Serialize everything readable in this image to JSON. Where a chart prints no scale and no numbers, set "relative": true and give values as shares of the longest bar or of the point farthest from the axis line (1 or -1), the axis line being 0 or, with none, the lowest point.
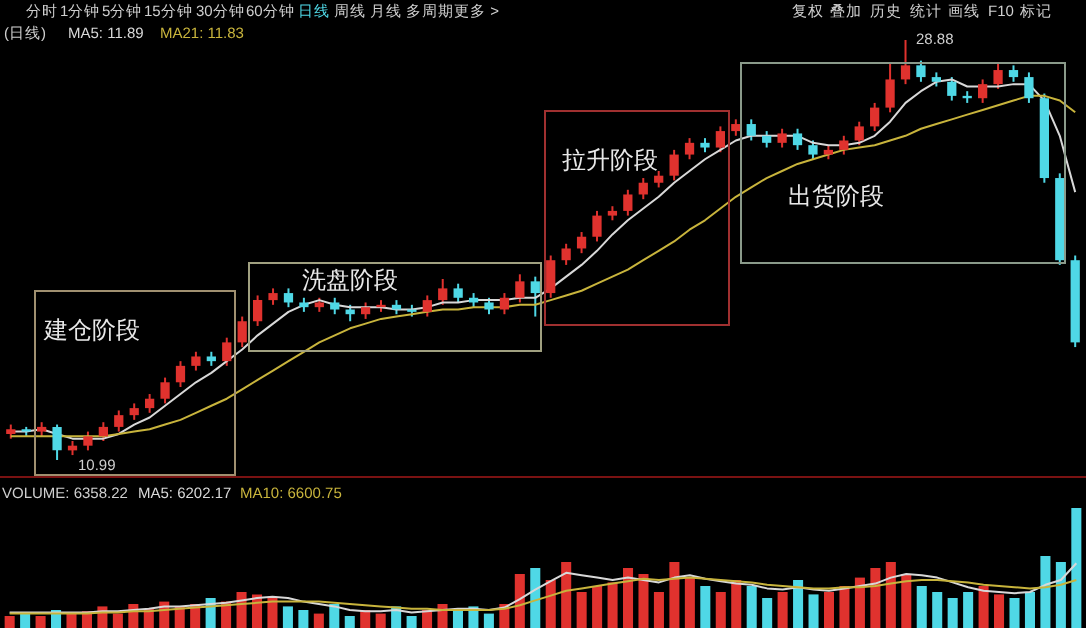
{
  "chart_data": [
    {
      "type": "candlestick",
      "categories": [
        null,
        null,
        null,
        null,
        null,
        null,
        null,
        null,
        null,
        null,
        null,
        null,
        null,
        null,
        null,
        null,
        null,
        null,
        null,
        null,
        null,
        null,
        null,
        null,
        null,
        null,
        null,
        null,
        null,
        null,
        null,
        null,
        null,
        null,
        null,
        null,
        null,
        null,
        null,
        null,
        null,
        null,
        null,
        null,
        null,
        null,
        null,
        null,
        null,
        null,
        null,
        null,
        null,
        null,
        null,
        null,
        null,
        null,
        null,
        null,
        null,
        null,
        null,
        null,
        null,
        null,
        null,
        null,
        null,
        null
      ],
      "ohlc": [
        [
          12.1,
          12.5,
          11.9,
          12.3
        ],
        [
          12.3,
          12.4,
          12.0,
          12.2
        ],
        [
          12.2,
          12.6,
          12.0,
          12.4
        ],
        [
          12.4,
          12.5,
          10.99,
          11.4
        ],
        [
          11.4,
          11.8,
          11.2,
          11.6
        ],
        [
          11.6,
          12.2,
          11.4,
          12.0
        ],
        [
          12.0,
          12.6,
          11.8,
          12.4
        ],
        [
          12.4,
          13.1,
          12.2,
          12.9
        ],
        [
          12.9,
          13.4,
          12.7,
          13.2
        ],
        [
          13.2,
          13.8,
          13.0,
          13.6
        ],
        [
          13.6,
          14.5,
          13.4,
          14.3
        ],
        [
          14.3,
          15.2,
          14.1,
          15.0
        ],
        [
          15.0,
          15.6,
          14.8,
          15.4
        ],
        [
          15.4,
          15.6,
          15.0,
          15.2
        ],
        [
          15.2,
          16.2,
          15.0,
          16.0
        ],
        [
          16.0,
          17.1,
          15.8,
          16.9
        ],
        [
          16.9,
          18.0,
          16.7,
          17.8
        ],
        [
          17.8,
          18.3,
          17.6,
          18.1
        ],
        [
          18.1,
          18.3,
          17.5,
          17.7
        ],
        [
          17.7,
          17.9,
          17.3,
          17.5
        ],
        [
          17.5,
          17.9,
          17.3,
          17.7
        ],
        [
          17.7,
          17.9,
          17.2,
          17.4
        ],
        [
          17.4,
          17.6,
          16.9,
          17.2
        ],
        [
          17.2,
          17.7,
          17.0,
          17.5
        ],
        [
          17.5,
          17.8,
          17.3,
          17.6
        ],
        [
          17.6,
          17.8,
          17.2,
          17.4
        ],
        [
          17.4,
          17.6,
          17.1,
          17.3
        ],
        [
          17.3,
          18.0,
          17.1,
          17.8
        ],
        [
          17.8,
          18.7,
          17.6,
          18.3
        ],
        [
          18.3,
          18.5,
          17.7,
          17.9
        ],
        [
          17.9,
          18.1,
          17.5,
          17.7
        ],
        [
          17.7,
          17.9,
          17.2,
          17.4
        ],
        [
          17.4,
          18.1,
          17.2,
          17.9
        ],
        [
          17.9,
          18.9,
          17.7,
          18.6
        ],
        [
          18.6,
          18.8,
          17.1,
          18.1
        ],
        [
          18.1,
          19.7,
          17.9,
          19.5
        ],
        [
          19.5,
          20.2,
          19.3,
          20.0
        ],
        [
          20.0,
          20.7,
          19.8,
          20.5
        ],
        [
          20.5,
          21.6,
          20.3,
          21.4
        ],
        [
          21.4,
          21.8,
          21.2,
          21.6
        ],
        [
          21.6,
          22.5,
          21.4,
          22.3
        ],
        [
          22.3,
          23.0,
          22.1,
          22.8
        ],
        [
          22.8,
          23.3,
          22.6,
          23.1
        ],
        [
          23.1,
          24.2,
          22.9,
          24.0
        ],
        [
          24.0,
          24.7,
          23.8,
          24.5
        ],
        [
          24.5,
          24.7,
          24.1,
          24.3
        ],
        [
          24.3,
          25.2,
          24.1,
          25.0
        ],
        [
          25.0,
          25.5,
          24.8,
          25.3
        ],
        [
          25.3,
          25.5,
          24.6,
          24.8
        ],
        [
          24.8,
          25.0,
          24.3,
          24.5
        ],
        [
          24.5,
          25.1,
          24.3,
          24.9
        ],
        [
          24.9,
          25.1,
          24.2,
          24.4
        ],
        [
          24.4,
          24.6,
          23.8,
          24.0
        ],
        [
          24.0,
          24.4,
          23.8,
          24.2
        ],
        [
          24.2,
          24.8,
          24.0,
          24.6
        ],
        [
          24.6,
          25.4,
          24.4,
          25.2
        ],
        [
          25.2,
          26.2,
          25.0,
          26.0
        ],
        [
          26.0,
          27.9,
          25.8,
          27.2
        ],
        [
          27.2,
          28.88,
          27.0,
          27.8
        ],
        [
          27.8,
          28.0,
          27.1,
          27.3
        ],
        [
          27.3,
          27.5,
          26.9,
          27.1
        ],
        [
          27.1,
          27.3,
          26.3,
          26.5
        ],
        [
          26.5,
          26.7,
          26.2,
          26.4
        ],
        [
          26.4,
          27.2,
          26.2,
          27.0
        ],
        [
          27.0,
          27.9,
          26.8,
          27.6
        ],
        [
          27.6,
          27.8,
          27.1,
          27.3
        ],
        [
          27.3,
          27.5,
          26.2,
          26.4
        ],
        [
          26.4,
          26.6,
          22.8,
          23.0
        ],
        [
          23.0,
          23.2,
          19.3,
          19.5
        ],
        [
          19.5,
          19.7,
          15.8,
          16.0
        ]
      ],
      "colors": [
        "#e0322e",
        "#4fd8e6",
        "#e0322e",
        "#4fd8e6",
        "#e0322e",
        "#e0322e",
        "#e0322e",
        "#e0322e",
        "#e0322e",
        "#e0322e",
        "#e0322e",
        "#e0322e",
        "#e0322e",
        "#4fd8e6",
        "#e0322e",
        "#e0322e",
        "#e0322e",
        "#e0322e",
        "#4fd8e6",
        "#4fd8e6",
        "#e0322e",
        "#4fd8e6",
        "#4fd8e6",
        "#e0322e",
        "#e0322e",
        "#4fd8e6",
        "#4fd8e6",
        "#e0322e",
        "#e0322e",
        "#4fd8e6",
        "#4fd8e6",
        "#4fd8e6",
        "#e0322e",
        "#e0322e",
        "#4fd8e6",
        "#e0322e",
        "#e0322e",
        "#e0322e",
        "#e0322e",
        "#e0322e",
        "#e0322e",
        "#e0322e",
        "#e0322e",
        "#e0322e",
        "#e0322e",
        "#4fd8e6",
        "#e0322e",
        "#e0322e",
        "#4fd8e6",
        "#4fd8e6",
        "#e0322e",
        "#4fd8e6",
        "#4fd8e6",
        "#e0322e",
        "#e0322e",
        "#e0322e",
        "#e0322e",
        "#e0322e",
        "#e0322e",
        "#4fd8e6",
        "#4fd8e6",
        "#4fd8e6",
        "#4fd8e6",
        "#e0322e",
        "#e0322e",
        "#4fd8e6",
        "#4fd8e6",
        "#4fd8e6",
        "#4fd8e6",
        "#4fd8e6"
      ],
      "series": [
        {
          "type": "line",
          "color": "#d8d8d8",
          "values": [
            12.2,
            12.2,
            12.3,
            12.1,
            11.9,
            11.9,
            11.9,
            12.1,
            12.5,
            12.8,
            13.3,
            13.8,
            14.3,
            14.7,
            15.2,
            15.7,
            16.3,
            16.8,
            17.3,
            17.6,
            17.8,
            17.6,
            17.5,
            17.5,
            17.5,
            17.4,
            17.4,
            17.5,
            17.7,
            17.7,
            17.8,
            17.8,
            17.8,
            17.9,
            17.9,
            18.3,
            18.8,
            19.3,
            19.9,
            20.6,
            21.2,
            21.7,
            22.2,
            22.8,
            23.3,
            23.8,
            24.2,
            24.6,
            24.8,
            24.8,
            24.8,
            24.8,
            24.5,
            24.4,
            24.4,
            24.5,
            24.8,
            25.4,
            26.2,
            26.7,
            27.1,
            27.2,
            26.9,
            26.9,
            26.9,
            27.0,
            27.0,
            26.3,
            24.8,
            22.4
          ]
        },
        {
          "type": "line",
          "color": "#c8b43c",
          "values": [
            12.0,
            12.0,
            12.0,
            12.0,
            12.0,
            12.0,
            12.0,
            12.1,
            12.2,
            12.3,
            12.5,
            12.7,
            13.0,
            13.3,
            13.6,
            14.0,
            14.4,
            14.8,
            15.2,
            15.6,
            16.0,
            16.3,
            16.6,
            16.8,
            17.0,
            17.1,
            17.2,
            17.3,
            17.4,
            17.4,
            17.5,
            17.5,
            17.5,
            17.6,
            17.6,
            17.8,
            18.0,
            18.2,
            18.5,
            18.8,
            19.1,
            19.5,
            19.9,
            20.3,
            20.8,
            21.2,
            21.7,
            22.2,
            22.6,
            23.0,
            23.3,
            23.6,
            23.8,
            24.0,
            24.2,
            24.3,
            24.4,
            24.6,
            24.8,
            25.1,
            25.3,
            25.5,
            25.7,
            25.9,
            26.1,
            26.3,
            26.5,
            26.5,
            26.3,
            25.8
          ]
        }
      ],
      "annotations": [
        "分时",
        "1分钟",
        "5分钟",
        "15分钟",
        "30分钟",
        "60分钟",
        "日线",
        "周线",
        "月线",
        "多周期",
        "更多 >",
        "复权",
        "叠加",
        "历史",
        "统计",
        "画线",
        "F10",
        "标记",
        "(日线)",
        "MA5: 11.89",
        "MA21: 11.83",
        "建仓阶段",
        "洗盘阶段",
        "拉升阶段",
        "出货阶段",
        "28.88",
        "10.99"
      ]
    },
    {
      "type": "bar",
      "relative": true,
      "categories": [
        null,
        null,
        null,
        null,
        null,
        null,
        null,
        null,
        null,
        null,
        null,
        null,
        null,
        null,
        null,
        null,
        null,
        null,
        null,
        null,
        null,
        null,
        null,
        null,
        null,
        null,
        null,
        null,
        null,
        null,
        null,
        null,
        null,
        null,
        null,
        null,
        null,
        null,
        null,
        null,
        null,
        null,
        null,
        null,
        null,
        null,
        null,
        null,
        null,
        null,
        null,
        null,
        null,
        null,
        null,
        null,
        null,
        null,
        null,
        null,
        null,
        null,
        null,
        null,
        null,
        null,
        null,
        null,
        null,
        null
      ],
      "values": [
        0.1,
        0.12,
        0.1,
        0.15,
        0.12,
        0.14,
        0.18,
        0.12,
        0.2,
        0.16,
        0.22,
        0.18,
        0.2,
        0.25,
        0.22,
        0.3,
        0.28,
        0.25,
        0.18,
        0.15,
        0.12,
        0.2,
        0.1,
        0.15,
        0.12,
        0.18,
        0.1,
        0.15,
        0.2,
        0.15,
        0.18,
        0.12,
        0.2,
        0.45,
        0.5,
        0.4,
        0.55,
        0.3,
        0.35,
        0.38,
        0.5,
        0.45,
        0.3,
        0.55,
        0.42,
        0.35,
        0.3,
        0.4,
        0.35,
        0.25,
        0.3,
        0.4,
        0.28,
        0.3,
        0.35,
        0.42,
        0.5,
        0.55,
        0.45,
        0.35,
        0.3,
        0.25,
        0.3,
        0.35,
        0.28,
        0.25,
        0.3,
        0.6,
        0.55,
        1
      ],
      "colors": [
        "#e0322e",
        "#4fd8e6",
        "#e0322e",
        "#4fd8e6",
        "#e0322e",
        "#e0322e",
        "#e0322e",
        "#e0322e",
        "#e0322e",
        "#e0322e",
        "#e0322e",
        "#e0322e",
        "#e0322e",
        "#4fd8e6",
        "#e0322e",
        "#e0322e",
        "#e0322e",
        "#e0322e",
        "#4fd8e6",
        "#4fd8e6",
        "#e0322e",
        "#4fd8e6",
        "#4fd8e6",
        "#e0322e",
        "#e0322e",
        "#4fd8e6",
        "#4fd8e6",
        "#e0322e",
        "#e0322e",
        "#4fd8e6",
        "#4fd8e6",
        "#4fd8e6",
        "#e0322e",
        "#e0322e",
        "#4fd8e6",
        "#e0322e",
        "#e0322e",
        "#e0322e",
        "#e0322e",
        "#e0322e",
        "#e0322e",
        "#e0322e",
        "#e0322e",
        "#e0322e",
        "#e0322e",
        "#4fd8e6",
        "#e0322e",
        "#e0322e",
        "#4fd8e6",
        "#4fd8e6",
        "#e0322e",
        "#4fd8e6",
        "#4fd8e6",
        "#e0322e",
        "#e0322e",
        "#e0322e",
        "#e0322e",
        "#e0322e",
        "#e0322e",
        "#4fd8e6",
        "#4fd8e6",
        "#4fd8e6",
        "#4fd8e6",
        "#e0322e",
        "#e0322e",
        "#4fd8e6",
        "#4fd8e6",
        "#4fd8e6",
        "#4fd8e6",
        "#4fd8e6"
      ],
      "series": [
        {
          "type": "line",
          "color": "#d8d8d8",
          "values": [
            0.13,
            0.13,
            0.13,
            0.13,
            0.13,
            0.13,
            0.14,
            0.14,
            0.15,
            0.16,
            0.18,
            0.18,
            0.19,
            0.2,
            0.21,
            0.23,
            0.25,
            0.26,
            0.25,
            0.22,
            0.2,
            0.18,
            0.15,
            0.14,
            0.14,
            0.15,
            0.13,
            0.14,
            0.15,
            0.16,
            0.16,
            0.15,
            0.17,
            0.24,
            0.32,
            0.39,
            0.46,
            0.44,
            0.42,
            0.4,
            0.42,
            0.4,
            0.38,
            0.42,
            0.44,
            0.41,
            0.39,
            0.37,
            0.36,
            0.33,
            0.32,
            0.34,
            0.32,
            0.31,
            0.33,
            0.35,
            0.37,
            0.42,
            0.45,
            0.44,
            0.42,
            0.38,
            0.34,
            0.31,
            0.3,
            0.29,
            0.3,
            0.36,
            0.4,
            0.54
          ]
        },
        {
          "type": "line",
          "color": "#c8b43c",
          "values": [
            0.12,
            0.12,
            0.12,
            0.12,
            0.12,
            0.12,
            0.13,
            0.13,
            0.14,
            0.14,
            0.15,
            0.16,
            0.17,
            0.18,
            0.19,
            0.2,
            0.21,
            0.22,
            0.22,
            0.22,
            0.22,
            0.21,
            0.2,
            0.19,
            0.18,
            0.17,
            0.16,
            0.16,
            0.15,
            0.15,
            0.15,
            0.15,
            0.16,
            0.19,
            0.23,
            0.27,
            0.31,
            0.33,
            0.35,
            0.37,
            0.39,
            0.41,
            0.4,
            0.41,
            0.42,
            0.41,
            0.4,
            0.39,
            0.38,
            0.36,
            0.35,
            0.34,
            0.33,
            0.33,
            0.34,
            0.34,
            0.35,
            0.37,
            0.39,
            0.4,
            0.4,
            0.39,
            0.38,
            0.36,
            0.35,
            0.34,
            0.33,
            0.34,
            0.36,
            0.4
          ]
        }
      ],
      "annotations": [
        "VOLUME: 6358.22",
        "MA5: 6202.17",
        "MA10: 6600.75"
      ]
    }
  ]
}
